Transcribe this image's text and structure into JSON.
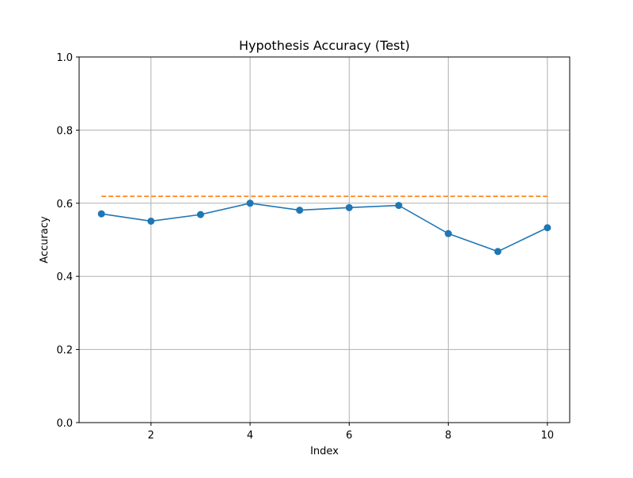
{
  "chart_data": {
    "type": "line",
    "title": "Hypothesis Accuracy (Test)",
    "xlabel": "Index",
    "ylabel": "Accuracy",
    "xlim": [
      0.55,
      10.45
    ],
    "ylim": [
      0.0,
      1.0
    ],
    "xticks": [
      2,
      4,
      6,
      8,
      10
    ],
    "yticks": [
      0.0,
      0.2,
      0.4,
      0.6,
      0.8,
      1.0
    ],
    "xtick_labels": [
      "2",
      "4",
      "6",
      "8",
      "10"
    ],
    "ytick_labels": [
      "0.0",
      "0.2",
      "0.4",
      "0.6",
      "0.8",
      "1.0"
    ],
    "grid": true,
    "legend": false,
    "series": [
      {
        "style": "solid-with-markers",
        "color": "#1f77b4",
        "x": [
          1,
          2,
          3,
          4,
          5,
          6,
          7,
          8,
          9,
          10
        ],
        "values": [
          0.571,
          0.551,
          0.569,
          0.6,
          0.581,
          0.588,
          0.594,
          0.517,
          0.468,
          0.533
        ]
      },
      {
        "style": "dashed",
        "color": "#ff7f0e",
        "x": [
          1,
          10
        ],
        "values": [
          0.619,
          0.619
        ]
      }
    ]
  }
}
